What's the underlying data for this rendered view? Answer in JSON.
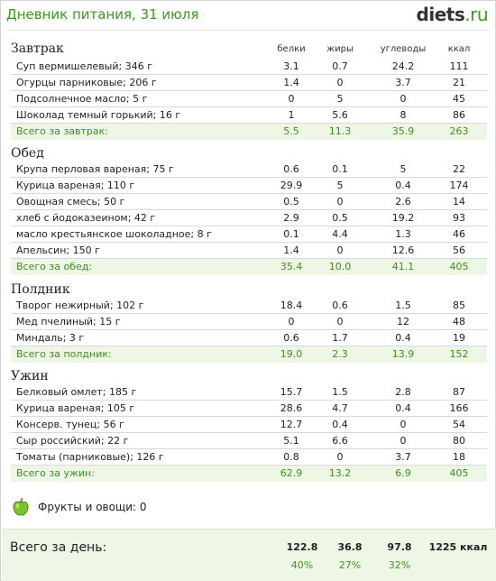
{
  "header": {
    "title": "Дневник питания, 31 июля",
    "logo_main": "diets",
    "logo_tld": ".ru"
  },
  "columns": {
    "protein": "белки",
    "fat": "жиры",
    "carbs": "углеводы",
    "kcal": "ккал"
  },
  "meals": [
    {
      "title": "Завтрак",
      "items": [
        {
          "name": "Суп вермишелевый; 346 г",
          "protein": "3.1",
          "fat": "0.7",
          "carbs": "24.2",
          "kcal": "111"
        },
        {
          "name": "Огурцы парниковые; 206 г",
          "protein": "1.4",
          "fat": "0",
          "carbs": "3.7",
          "kcal": "21"
        },
        {
          "name": "Подсолнечное масло; 5 г",
          "protein": "0",
          "fat": "5",
          "carbs": "0",
          "kcal": "45"
        },
        {
          "name": "Шоколад темный горький; 16 г",
          "protein": "1",
          "fat": "5.6",
          "carbs": "8",
          "kcal": "86"
        }
      ],
      "total": {
        "label": "Всего за завтрак:",
        "protein": "5.5",
        "fat": "11.3",
        "carbs": "35.9",
        "kcal": "263"
      }
    },
    {
      "title": "Обед",
      "items": [
        {
          "name": "Крупа перловая вареная; 75 г",
          "protein": "0.6",
          "fat": "0.1",
          "carbs": "5",
          "kcal": "22"
        },
        {
          "name": "Курица вареная; 110 г",
          "protein": "29.9",
          "fat": "5",
          "carbs": "0.4",
          "kcal": "174"
        },
        {
          "name": "Овощная смесь; 50 г",
          "protein": "0.5",
          "fat": "0",
          "carbs": "2.6",
          "kcal": "14"
        },
        {
          "name": "хлеб с йодоказеином; 42 г",
          "protein": "2.9",
          "fat": "0.5",
          "carbs": "19.2",
          "kcal": "93"
        },
        {
          "name": "масло крестьянское шоколадное; 8 г",
          "protein": "0.1",
          "fat": "4.4",
          "carbs": "1.3",
          "kcal": "46"
        },
        {
          "name": "Апельсин; 150 г",
          "protein": "1.4",
          "fat": "0",
          "carbs": "12.6",
          "kcal": "56"
        }
      ],
      "total": {
        "label": "Всего за обед:",
        "protein": "35.4",
        "fat": "10.0",
        "carbs": "41.1",
        "kcal": "405"
      }
    },
    {
      "title": "Полдник",
      "items": [
        {
          "name": "Творог нежирный; 102 г",
          "protein": "18.4",
          "fat": "0.6",
          "carbs": "1.5",
          "kcal": "85"
        },
        {
          "name": "Мед пчелиный; 15 г",
          "protein": "0",
          "fat": "0",
          "carbs": "12",
          "kcal": "48"
        },
        {
          "name": "Миндаль; 3 г",
          "protein": "0.6",
          "fat": "1.7",
          "carbs": "0.4",
          "kcal": "19"
        }
      ],
      "total": {
        "label": "Всего за полдник:",
        "protein": "19.0",
        "fat": "2.3",
        "carbs": "13.9",
        "kcal": "152"
      }
    },
    {
      "title": "Ужин",
      "items": [
        {
          "name": "Белковый омлет; 185 г",
          "protein": "15.7",
          "fat": "1.5",
          "carbs": "2.8",
          "kcal": "87"
        },
        {
          "name": "Курица вареная; 105 г",
          "protein": "28.6",
          "fat": "4.7",
          "carbs": "0.4",
          "kcal": "166"
        },
        {
          "name": "Консерв. тунец; 56 г",
          "protein": "12.7",
          "fat": "0.4",
          "carbs": "0",
          "kcal": "54"
        },
        {
          "name": "Сыр российский; 22 г",
          "protein": "5.1",
          "fat": "6.6",
          "carbs": "0",
          "kcal": "80"
        },
        {
          "name": "Томаты (парниковые); 126 г",
          "protein": "0.8",
          "fat": "0",
          "carbs": "3.7",
          "kcal": "18"
        }
      ],
      "total": {
        "label": "Всего за ужин:",
        "protein": "62.9",
        "fat": "13.2",
        "carbs": "6.9",
        "kcal": "405"
      }
    }
  ],
  "fruit": {
    "label": "Фрукты и овощи: 0",
    "icon": "apple-icon"
  },
  "day_total": {
    "label": "Всего за день:",
    "protein": "122.8",
    "fat": "36.8",
    "carbs": "97.8",
    "kcal": "1225 ккал",
    "protein_pct": "40%",
    "fat_pct": "27%",
    "carbs_pct": "32%"
  },
  "colors": {
    "accent": "#3c9a1c",
    "total_bg": "#eef7e6"
  }
}
